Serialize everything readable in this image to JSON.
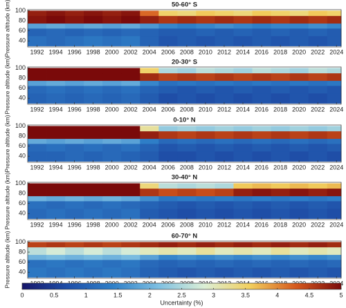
{
  "chart_data": [
    {
      "type": "heatmap",
      "title": "50-60° S",
      "ylabel": "Pressure altitude (km)",
      "xlim": [
        1991,
        2024.5
      ],
      "ylim": [
        28,
        102
      ],
      "xticks": [
        1992,
        1994,
        1996,
        1998,
        2000,
        2002,
        2004,
        2006,
        2008,
        2010,
        2012,
        2014,
        2016,
        2018,
        2020,
        2022,
        2024
      ],
      "yticks": [
        40,
        60,
        80,
        100
      ],
      "x_edges": [
        1991,
        1993,
        1995,
        1997,
        1999,
        2001,
        2003,
        2005,
        2007,
        2009,
        2011,
        2013,
        2015,
        2017,
        2019,
        2021,
        2023,
        2024.5
      ],
      "y_edges": [
        30,
        50,
        65,
        75,
        90,
        100
      ],
      "z": [
        [
          1.2,
          1.1,
          1.2,
          1.3,
          1.2,
          1.3,
          1.0,
          0.8,
          0.9,
          0.8,
          0.9,
          0.8,
          0.9,
          0.8,
          0.9,
          0.8,
          0.9
        ],
        [
          1.0,
          1.1,
          1.0,
          1.1,
          1.0,
          1.1,
          1.0,
          0.9,
          0.9,
          1.0,
          0.9,
          1.0,
          0.9,
          1.0,
          0.9,
          1.0,
          0.9
        ],
        [
          1.8,
          1.9,
          1.8,
          1.9,
          1.8,
          1.9,
          1.7,
          1.5,
          1.4,
          1.5,
          1.6,
          1.5,
          1.4,
          1.5,
          1.5,
          1.6,
          1.5
        ],
        [
          4.9,
          5.0,
          4.9,
          5.0,
          4.9,
          5.0,
          4.8,
          4.6,
          4.7,
          4.6,
          4.7,
          4.6,
          4.7,
          4.6,
          4.7,
          4.6,
          4.7
        ],
        [
          4.8,
          4.9,
          4.8,
          4.9,
          4.8,
          4.9,
          4.2,
          3.5,
          3.4,
          3.6,
          3.5,
          3.4,
          3.6,
          3.5,
          3.4,
          3.6,
          3.5
        ]
      ]
    },
    {
      "type": "heatmap",
      "title": "20-30° S",
      "ylabel": "Pressure altitude (km)",
      "xlim": [
        1991,
        2024.5
      ],
      "ylim": [
        28,
        102
      ],
      "xticks": [
        1992,
        1994,
        1996,
        1998,
        2000,
        2002,
        2004,
        2006,
        2008,
        2010,
        2012,
        2014,
        2016,
        2018,
        2020,
        2022,
        2024
      ],
      "yticks": [
        40,
        60,
        80,
        100
      ],
      "x_edges": [
        1991,
        1993,
        1995,
        1997,
        1999,
        2001,
        2003,
        2005,
        2007,
        2009,
        2011,
        2013,
        2015,
        2017,
        2019,
        2021,
        2023,
        2024.5
      ],
      "y_edges": [
        30,
        50,
        65,
        75,
        90,
        100
      ],
      "z": [
        [
          1.0,
          1.1,
          1.0,
          1.1,
          1.0,
          1.1,
          0.9,
          0.7,
          0.8,
          0.7,
          0.8,
          0.7,
          0.8,
          0.7,
          0.8,
          0.7,
          0.8
        ],
        [
          1.1,
          1.2,
          1.1,
          1.2,
          1.1,
          1.2,
          1.0,
          0.9,
          0.8,
          0.9,
          0.8,
          0.9,
          0.8,
          0.9,
          0.8,
          0.9,
          0.8
        ],
        [
          1.8,
          1.9,
          1.8,
          1.9,
          1.8,
          1.9,
          1.5,
          1.2,
          1.3,
          1.2,
          1.3,
          1.2,
          1.3,
          1.2,
          1.3,
          1.2,
          1.3
        ],
        [
          5.0,
          5.0,
          5.0,
          5.0,
          5.0,
          5.0,
          4.7,
          4.5,
          4.6,
          4.5,
          4.6,
          4.5,
          4.6,
          4.5,
          4.6,
          4.5,
          4.6
        ],
        [
          5.0,
          5.0,
          5.0,
          5.0,
          5.0,
          5.0,
          3.5,
          2.5,
          2.4,
          2.6,
          2.5,
          2.4,
          2.6,
          2.5,
          2.4,
          2.6,
          2.5
        ]
      ]
    },
    {
      "type": "heatmap",
      "title": "0-10° N",
      "ylabel": "Pressure altitude (km)",
      "xlim": [
        1991,
        2024.5
      ],
      "ylim": [
        28,
        102
      ],
      "xticks": [
        1992,
        1994,
        1996,
        1998,
        2000,
        2002,
        2004,
        2006,
        2008,
        2010,
        2012,
        2014,
        2016,
        2018,
        2020,
        2022,
        2024
      ],
      "yticks": [
        40,
        60,
        80,
        100
      ],
      "x_edges": [
        1991,
        1993,
        1995,
        1997,
        1999,
        2001,
        2003,
        2005,
        2007,
        2009,
        2011,
        2013,
        2015,
        2017,
        2019,
        2021,
        2023,
        2024.5
      ],
      "y_edges": [
        30,
        50,
        65,
        75,
        90,
        100
      ],
      "z": [
        [
          1.0,
          1.0,
          1.1,
          1.0,
          1.1,
          1.0,
          0.9,
          0.7,
          0.7,
          0.8,
          0.7,
          0.8,
          0.7,
          0.8,
          0.7,
          0.8,
          0.7
        ],
        [
          1.1,
          1.2,
          1.1,
          1.2,
          1.1,
          1.2,
          1.0,
          0.8,
          0.9,
          0.8,
          0.9,
          0.8,
          0.9,
          0.8,
          0.9,
          0.8,
          0.9
        ],
        [
          1.9,
          1.8,
          1.9,
          1.8,
          1.9,
          1.8,
          1.4,
          1.1,
          1.2,
          1.1,
          1.2,
          1.1,
          1.2,
          1.1,
          1.2,
          1.1,
          1.2
        ],
        [
          5.0,
          5.0,
          5.0,
          5.0,
          5.0,
          5.0,
          4.8,
          4.6,
          4.5,
          4.6,
          4.5,
          4.6,
          4.5,
          4.6,
          4.5,
          4.6,
          4.5
        ],
        [
          5.0,
          5.0,
          5.0,
          5.0,
          5.0,
          5.0,
          3.2,
          2.3,
          2.4,
          2.3,
          2.4,
          2.3,
          2.4,
          2.3,
          2.4,
          2.3,
          2.4
        ]
      ]
    },
    {
      "type": "heatmap",
      "title": "30-40° N",
      "ylabel": "Pressure altitude (km)",
      "xlim": [
        1991,
        2024.5
      ],
      "ylim": [
        28,
        102
      ],
      "xticks": [
        1992,
        1994,
        1996,
        1998,
        2000,
        2002,
        2004,
        2006,
        2008,
        2010,
        2012,
        2014,
        2016,
        2018,
        2020,
        2022,
        2024
      ],
      "yticks": [
        40,
        60,
        80,
        100
      ],
      "x_edges": [
        1991,
        1993,
        1995,
        1997,
        1999,
        2001,
        2003,
        2005,
        2007,
        2009,
        2011,
        2013,
        2015,
        2017,
        2019,
        2021,
        2023,
        2024.5
      ],
      "y_edges": [
        30,
        50,
        65,
        75,
        90,
        100
      ],
      "z": [
        [
          1.1,
          1.2,
          1.1,
          1.2,
          1.1,
          1.2,
          0.9,
          0.8,
          0.7,
          0.8,
          0.7,
          0.8,
          0.7,
          0.8,
          0.7,
          0.8,
          0.7
        ],
        [
          1.2,
          1.1,
          1.2,
          1.1,
          1.2,
          1.1,
          1.0,
          0.9,
          0.8,
          0.9,
          0.8,
          0.9,
          0.8,
          0.9,
          0.8,
          0.9,
          0.8
        ],
        [
          2.0,
          1.9,
          2.0,
          1.9,
          2.0,
          1.9,
          1.6,
          1.3,
          1.4,
          1.3,
          1.4,
          1.3,
          1.4,
          1.3,
          1.4,
          1.3,
          1.4
        ],
        [
          5.0,
          5.0,
          5.0,
          5.0,
          5.0,
          5.0,
          4.6,
          4.4,
          4.5,
          4.4,
          4.5,
          4.8,
          4.9,
          4.8,
          4.9,
          4.8,
          4.9
        ],
        [
          5.0,
          5.0,
          5.0,
          5.0,
          5.0,
          5.0,
          3.4,
          2.6,
          2.5,
          2.6,
          2.5,
          3.6,
          3.7,
          3.6,
          3.7,
          3.6,
          3.7
        ]
      ]
    },
    {
      "type": "heatmap",
      "title": "60-70° N",
      "ylabel": "Pressure altitude (km)",
      "xlim": [
        1991,
        2024.5
      ],
      "ylim": [
        28,
        102
      ],
      "xticks": [
        1992,
        1994,
        1996,
        1998,
        2000,
        2002,
        2004,
        2006,
        2008,
        2010,
        2012,
        2014,
        2016,
        2018,
        2020,
        2022,
        2024
      ],
      "yticks": [
        40,
        60,
        80,
        100
      ],
      "x_edges": [
        1991,
        1993,
        1995,
        1997,
        1999,
        2001,
        2003,
        2005,
        2007,
        2009,
        2011,
        2013,
        2015,
        2017,
        2019,
        2021,
        2023,
        2024.5
      ],
      "y_edges": [
        30,
        50,
        65,
        75,
        90,
        100
      ],
      "z": [
        [
          1.3,
          1.2,
          1.3,
          1.2,
          1.3,
          1.2,
          1.0,
          0.9,
          0.8,
          0.9,
          0.8,
          0.9,
          0.8,
          0.9,
          0.8,
          0.9,
          0.8
        ],
        [
          1.2,
          1.3,
          1.2,
          1.3,
          1.2,
          1.3,
          1.1,
          1.0,
          1.1,
          1.0,
          1.1,
          1.0,
          1.1,
          1.0,
          1.1,
          1.0,
          1.1
        ],
        [
          2.0,
          2.1,
          2.0,
          2.1,
          2.0,
          2.1,
          1.8,
          1.5,
          1.6,
          1.5,
          1.6,
          1.5,
          1.6,
          1.5,
          1.6,
          1.5,
          1.6
        ],
        [
          2.6,
          2.8,
          2.6,
          2.8,
          2.6,
          2.8,
          3.0,
          3.1,
          3.0,
          3.2,
          3.0,
          3.1,
          3.0,
          3.2,
          3.0,
          3.1,
          3.0
        ],
        [
          4.5,
          4.6,
          4.5,
          4.6,
          4.5,
          4.6,
          4.7,
          4.8,
          4.7,
          4.8,
          4.7,
          4.8,
          4.7,
          4.8,
          4.7,
          4.8,
          4.7
        ]
      ]
    }
  ],
  "colorbar": {
    "label": "Uncertainty (%)",
    "clim": [
      0,
      5
    ],
    "ticks": [
      0,
      0.5,
      1,
      1.5,
      2,
      2.5,
      3,
      3.5,
      4,
      4.5,
      5
    ],
    "colormap": [
      "#16166a",
      "#1f4fa8",
      "#2f80c8",
      "#7fc0e2",
      "#dcefd6",
      "#f2cf5e",
      "#d65a1e",
      "#7a0a0a"
    ]
  }
}
